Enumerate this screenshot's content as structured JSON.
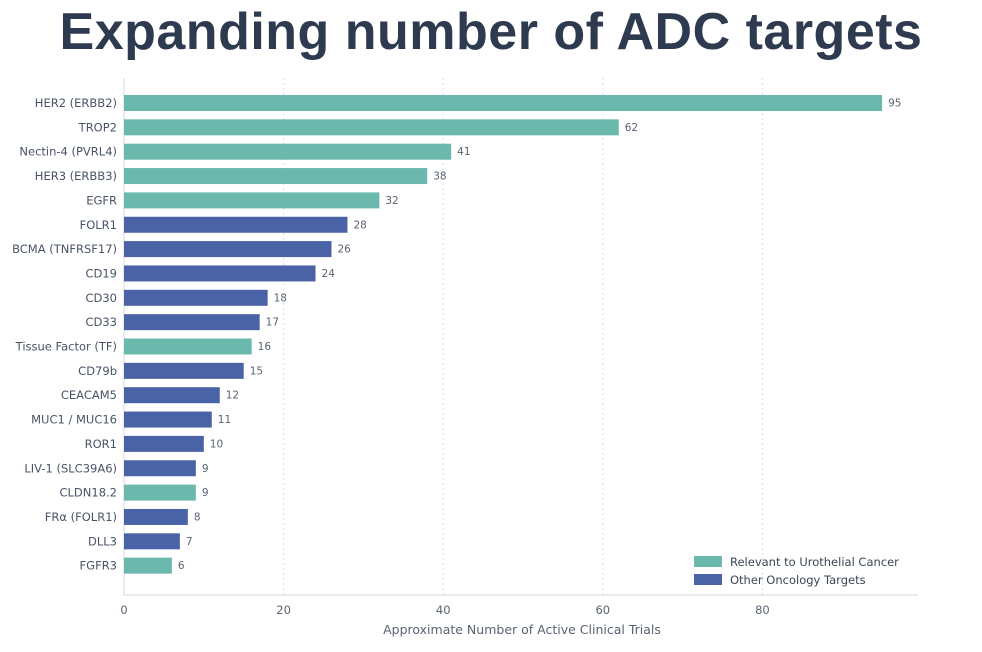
{
  "title": "Expanding number of ADC targets",
  "chart_data": {
    "type": "bar",
    "orientation": "horizontal",
    "xlabel": "Approximate Number of Active Clinical Trials",
    "ylabel": "",
    "xlim": [
      0,
      99
    ],
    "xticks": [
      0,
      20,
      40,
      60,
      80
    ],
    "grid": "vertical dashed",
    "legend_position": "bottom-right",
    "colors": {
      "Relevant to Urothelial Cancer": "#6bb8ad",
      "Other Oncology Targets": "#4a62a6"
    },
    "series": [
      {
        "name": "Relevant to Urothelial Cancer"
      },
      {
        "name": "Other Oncology Targets"
      }
    ],
    "categories": [
      "HER2 (ERBB2)",
      "TROP2",
      "Nectin-4 (PVRL4)",
      "HER3 (ERBB3)",
      "EGFR",
      "FOLR1",
      "BCMA (TNFRSF17)",
      "CD19",
      "CD30",
      "CD33",
      "Tissue Factor (TF)",
      "CD79b",
      "CEACAM5",
      "MUC1 / MUC16",
      "ROR1",
      "LIV-1 (SLC39A6)",
      "CLDN18.2",
      "FRα (FOLR1)",
      "DLL3",
      "FGFR3"
    ],
    "values": [
      95,
      62,
      41,
      38,
      32,
      28,
      26,
      24,
      18,
      17,
      16,
      15,
      12,
      11,
      10,
      9,
      9,
      8,
      7,
      6
    ],
    "groups": [
      "Relevant to Urothelial Cancer",
      "Relevant to Urothelial Cancer",
      "Relevant to Urothelial Cancer",
      "Relevant to Urothelial Cancer",
      "Relevant to Urothelial Cancer",
      "Other Oncology Targets",
      "Other Oncology Targets",
      "Other Oncology Targets",
      "Other Oncology Targets",
      "Other Oncology Targets",
      "Relevant to Urothelial Cancer",
      "Other Oncology Targets",
      "Other Oncology Targets",
      "Other Oncology Targets",
      "Other Oncology Targets",
      "Other Oncology Targets",
      "Relevant to Urothelial Cancer",
      "Other Oncology Targets",
      "Other Oncology Targets",
      "Relevant to Urothelial Cancer"
    ]
  }
}
